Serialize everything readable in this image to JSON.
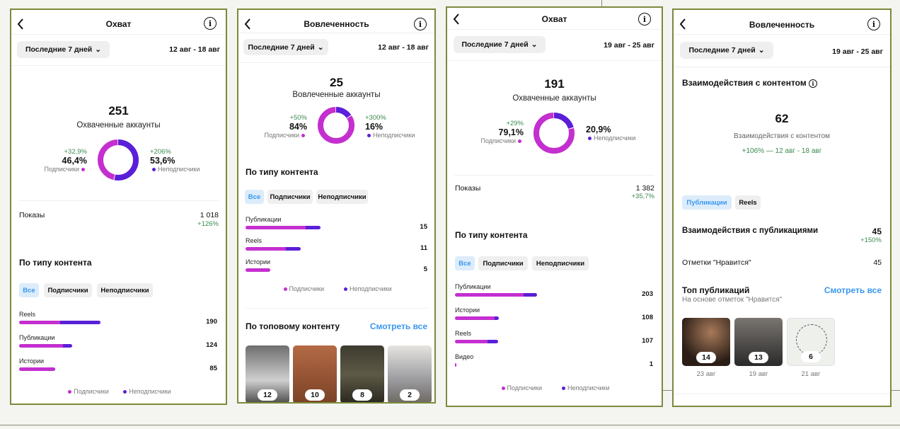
{
  "colors": {
    "subscribers": "#c42fcf",
    "non_subscribers": "#5a1fd8",
    "accent": "#3897f0",
    "positive": "#3b8a4f"
  },
  "common": {
    "period": "Последние 7 дней",
    "subs": "Подписчики",
    "nonsubs": "Неподписчики",
    "all": "Все",
    "by_type": "По типу контента",
    "see_all": "Смотреть все",
    "impressions": "Показы"
  },
  "p1": {
    "title": "Охват",
    "date": "12 авг - 18 авг",
    "total": "251",
    "total_label": "Охваченные аккаунты",
    "subs_change": "+32,9%",
    "subs_pct": "46,4%",
    "subs_share": 0.464,
    "nonsubs_change": "+206%",
    "nonsubs_pct": "53,6%",
    "impr": "1 018",
    "impr_change": "+126%",
    "rows": [
      {
        "label": "Reels",
        "value": 190,
        "value_text": "190",
        "subs_share": 0.5
      },
      {
        "label": "Публикации",
        "value": 124,
        "value_text": "124",
        "subs_share": 0.82
      },
      {
        "label": "Истории",
        "value": 85,
        "value_text": "85",
        "subs_share": 0.97
      }
    ]
  },
  "p2": {
    "title": "Вовлеченность",
    "date": "12 авг - 18 авг",
    "total": "25",
    "total_label": "Вовлеченные аккаунты",
    "subs_change": "+50%",
    "subs_pct": "84%",
    "subs_share": 0.84,
    "nonsubs_change": "+300%",
    "nonsubs_pct": "16%",
    "rows": [
      {
        "label": "Публикации",
        "value": 15,
        "value_text": "15",
        "subs_share": 0.8
      },
      {
        "label": "Reels",
        "value": 11,
        "value_text": "11",
        "subs_share": 0.73
      },
      {
        "label": "Истории",
        "value": 5,
        "value_text": "5",
        "subs_share": 1
      }
    ],
    "top_title": "По топовому контенту",
    "top": [
      {
        "count": "12"
      },
      {
        "count": "10"
      },
      {
        "count": "8"
      },
      {
        "count": "2"
      }
    ]
  },
  "p3": {
    "title": "Охват",
    "date": "19 авг - 25 авг",
    "total": "191",
    "total_label": "Охваченные аккаунты",
    "subs_change": "+29%",
    "subs_pct": "79,1%",
    "subs_share": 0.791,
    "nonsubs_pct": "20,9%",
    "impr": "1 382",
    "impr_change": "+35,7%",
    "rows": [
      {
        "label": "Публикации",
        "value": 203,
        "value_text": "203",
        "subs_share": 0.84
      },
      {
        "label": "Истории",
        "value": 108,
        "value_text": "108",
        "subs_share": 0.91
      },
      {
        "label": "Reels",
        "value": 107,
        "value_text": "107",
        "subs_share": 0.75
      },
      {
        "label": "Видео",
        "value": 1,
        "value_text": "1",
        "subs_share": 1
      }
    ]
  },
  "p4": {
    "title": "Вовлеченность",
    "date": "19 авг - 25 авг",
    "section": "Взаимодействия с контентом",
    "total": "62",
    "total_label": "Взаимодействия с контентом",
    "change": "+106% — 12 авг - 18 авг",
    "chips": [
      "Публикации",
      "Reels"
    ],
    "pub_title": "Взаимодействия с публикациями",
    "pub_value": "45",
    "pub_change": "+150%",
    "likes_label": "Отметки \"Нравится\"",
    "likes_value": "45",
    "top_title": "Топ публикаций",
    "top_sub": "На основе отметок \"Нравится\"",
    "top": [
      {
        "count": "14",
        "date": "23 авг"
      },
      {
        "count": "13",
        "date": "19 авг"
      },
      {
        "count": "6",
        "date": "21 авг"
      }
    ]
  }
}
